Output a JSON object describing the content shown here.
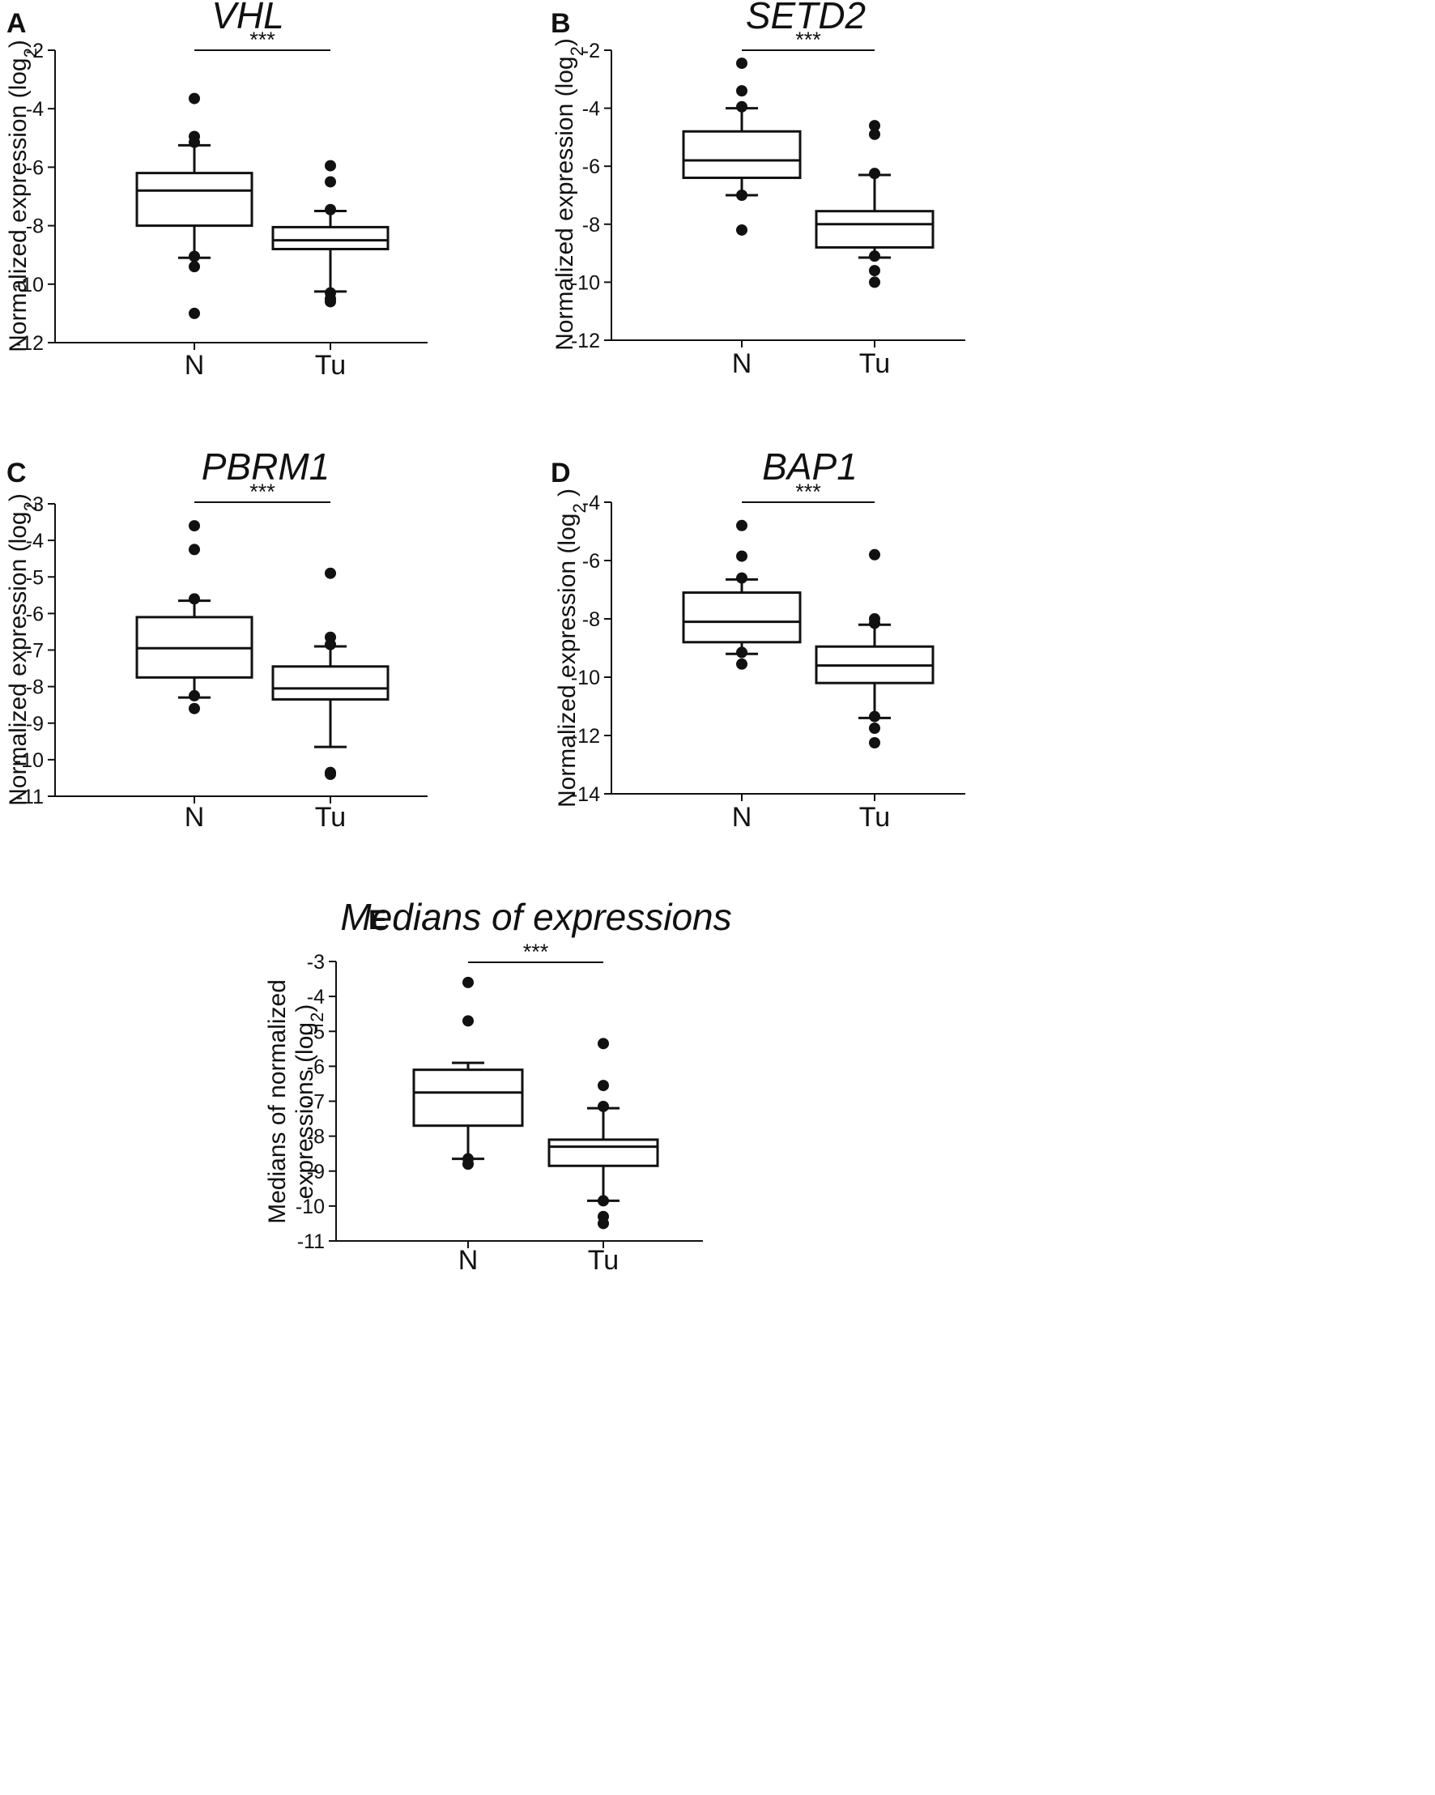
{
  "chart_data": [
    {
      "type": "box",
      "panel": "A",
      "title": "VHL",
      "ylabel": "Normalized expression (log",
      "ylabel_sub": "2",
      "ylabel_end": ")",
      "ylim": [
        -12,
        -2
      ],
      "yticks": [
        -2,
        -4,
        -6,
        -8,
        -10,
        -12
      ],
      "categories": [
        "N",
        "Tu"
      ],
      "significance": "***",
      "boxes": [
        {
          "category": "N",
          "whisker_low": -9.1,
          "q1": -8.0,
          "median": -6.8,
          "q3": -6.2,
          "whisker_high": -5.25,
          "outliers": [
            -3.65,
            -4.95,
            -5.15,
            -9.05,
            -9.4,
            -11.0
          ]
        },
        {
          "category": "Tu",
          "whisker_low": -10.25,
          "q1": -8.8,
          "median": -8.5,
          "q3": -8.05,
          "whisker_high": -7.5,
          "outliers": [
            -5.95,
            -6.5,
            -7.45,
            -10.3,
            -10.5,
            -10.6
          ]
        }
      ]
    },
    {
      "type": "box",
      "panel": "B",
      "title": "SETD2",
      "ylabel": "Normalized expression (log",
      "ylabel_sub": "2",
      "ylabel_end": ")",
      "ylim": [
        -12,
        -2
      ],
      "yticks": [
        -2,
        -4,
        -6,
        -8,
        -10,
        -12
      ],
      "categories": [
        "N",
        "Tu"
      ],
      "significance": "***",
      "boxes": [
        {
          "category": "N",
          "whisker_low": -7.0,
          "q1": -6.4,
          "median": -5.8,
          "q3": -4.8,
          "whisker_high": -4.0,
          "outliers": [
            -2.45,
            -3.4,
            -3.95,
            -7.0,
            -8.2
          ]
        },
        {
          "category": "Tu",
          "whisker_low": -9.15,
          "q1": -8.8,
          "median": -8.0,
          "q3": -7.55,
          "whisker_high": -6.3,
          "outliers": [
            -4.6,
            -4.9,
            -6.25,
            -9.1,
            -9.6,
            -10.0
          ]
        }
      ]
    },
    {
      "type": "box",
      "panel": "C",
      "title": "PBRM1",
      "ylabel": "Normalized expression (log",
      "ylabel_sub": "2",
      "ylabel_end": ")",
      "ylim": [
        -11,
        -3
      ],
      "yticks": [
        -3,
        -4,
        -5,
        -6,
        -7,
        -8,
        -9,
        -10,
        -11
      ],
      "categories": [
        "N",
        "Tu"
      ],
      "significance": "***",
      "boxes": [
        {
          "category": "N",
          "whisker_low": -8.3,
          "q1": -7.75,
          "median": -6.95,
          "q3": -6.1,
          "whisker_high": -5.65,
          "outliers": [
            -3.6,
            -4.25,
            -5.6,
            -8.25,
            -8.6
          ]
        },
        {
          "category": "Tu",
          "whisker_low": -9.65,
          "q1": -8.35,
          "median": -8.05,
          "q3": -7.45,
          "whisker_high": -6.9,
          "outliers": [
            -4.9,
            -6.65,
            -6.85,
            -10.35,
            -10.4
          ]
        }
      ]
    },
    {
      "type": "box",
      "panel": "D",
      "title": "BAP1",
      "ylabel": "Normalized expression (log",
      "ylabel_sub": "2",
      "ylabel_end": " )",
      "ylim": [
        -14,
        -4
      ],
      "yticks": [
        -4,
        -6,
        -8,
        -10,
        -12,
        -14
      ],
      "categories": [
        "N",
        "Tu"
      ],
      "significance": "***",
      "boxes": [
        {
          "category": "N",
          "whisker_low": -9.2,
          "q1": -8.8,
          "median": -8.1,
          "q3": -7.1,
          "whisker_high": -6.65,
          "outliers": [
            -4.8,
            -5.85,
            -6.6,
            -9.15,
            -9.55
          ]
        },
        {
          "category": "Tu",
          "whisker_low": -11.4,
          "q1": -10.2,
          "median": -9.6,
          "q3": -8.95,
          "whisker_high": -8.2,
          "outliers": [
            -5.8,
            -8.0,
            -8.15,
            -11.35,
            -11.75,
            -12.25
          ]
        }
      ]
    },
    {
      "type": "box",
      "panel": "E",
      "title": "Medians of expressions",
      "ylabel": "Medians of normalized",
      "ylabel2": "expressions (log",
      "ylabel_sub": "2",
      "ylabel_end": ")",
      "ylim": [
        -11,
        -3
      ],
      "yticks": [
        -3,
        -4,
        -5,
        -6,
        -7,
        -8,
        -9,
        -10,
        -11
      ],
      "categories": [
        "N",
        "Tu"
      ],
      "significance": "***",
      "boxes": [
        {
          "category": "N",
          "whisker_low": -8.65,
          "q1": -7.7,
          "median": -6.75,
          "q3": -6.1,
          "whisker_high": -5.9,
          "outliers": [
            -3.6,
            -4.7,
            -8.65,
            -8.8
          ]
        },
        {
          "category": "Tu",
          "whisker_low": -9.85,
          "q1": -8.85,
          "median": -8.3,
          "q3": -8.1,
          "whisker_high": -7.2,
          "outliers": [
            -5.35,
            -6.55,
            -7.15,
            -9.85,
            -10.3,
            -10.5
          ]
        }
      ]
    }
  ]
}
